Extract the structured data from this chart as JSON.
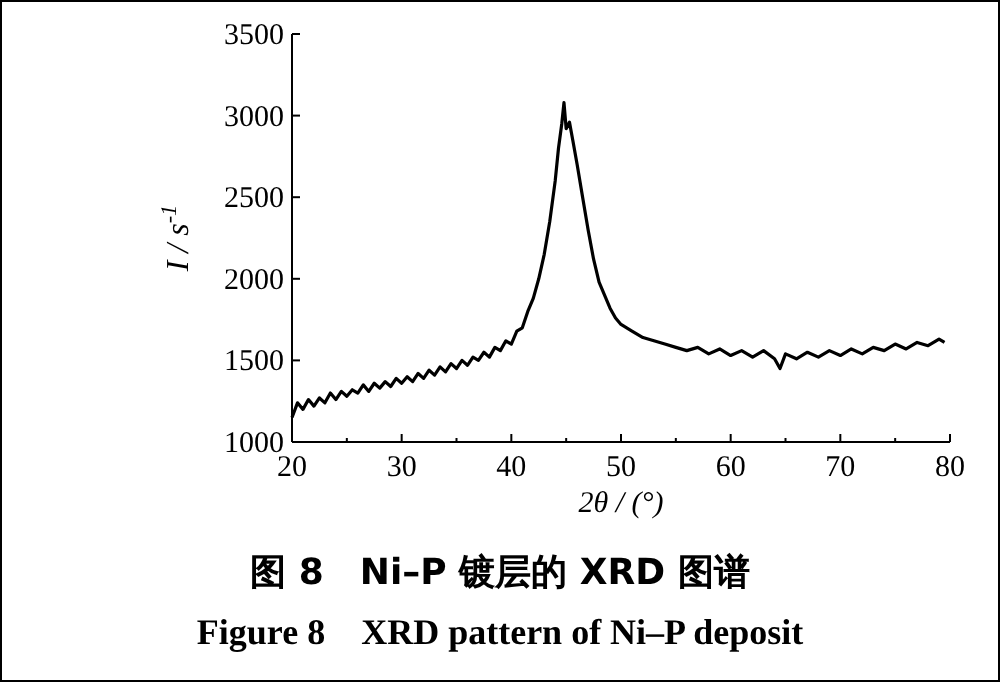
{
  "chart_data": {
    "type": "line",
    "title": "图 8　Ni–P 镀层的 XRD 图谱",
    "subtitle": "Figure 8　XRD pattern of Ni–P deposit",
    "xlabel": "2θ / (°)",
    "ylabel": "I / s$^{-1}$",
    "x": [
      20,
      20.5,
      21,
      21.5,
      22,
      22.5,
      23,
      23.5,
      24,
      24.5,
      25,
      25.5,
      26,
      26.5,
      27,
      27.5,
      28,
      28.5,
      29,
      29.5,
      30,
      30.5,
      31,
      31.5,
      32,
      32.5,
      33,
      33.5,
      34,
      34.5,
      35,
      35.5,
      36,
      36.5,
      37,
      37.5,
      38,
      38.5,
      39,
      39.5,
      40,
      40.5,
      41,
      41.5,
      42,
      42.5,
      43,
      43.5,
      44,
      44.3,
      44.6,
      44.8,
      45,
      45.3,
      45.6,
      46,
      46.5,
      47,
      47.5,
      48,
      48.5,
      49,
      49.5,
      50,
      51,
      52,
      53,
      54,
      55,
      56,
      57,
      58,
      59,
      60,
      61,
      62,
      63,
      64,
      64.5,
      65,
      66,
      67,
      68,
      69,
      70,
      71,
      72,
      73,
      74,
      75,
      76,
      77,
      78,
      79,
      79.5
    ],
    "series": [
      {
        "color": "#000000",
        "values": [
          1150,
          1240,
          1200,
          1260,
          1220,
          1270,
          1240,
          1300,
          1260,
          1310,
          1280,
          1320,
          1300,
          1350,
          1310,
          1360,
          1330,
          1370,
          1340,
          1390,
          1360,
          1400,
          1370,
          1420,
          1390,
          1440,
          1410,
          1460,
          1430,
          1480,
          1450,
          1500,
          1470,
          1520,
          1500,
          1550,
          1520,
          1580,
          1560,
          1620,
          1600,
          1680,
          1700,
          1800,
          1880,
          2000,
          2150,
          2350,
          2600,
          2800,
          2950,
          3080,
          2920,
          2960,
          2850,
          2700,
          2500,
          2300,
          2120,
          1980,
          1900,
          1820,
          1760,
          1720,
          1680,
          1640,
          1620,
          1600,
          1580,
          1560,
          1580,
          1540,
          1570,
          1530,
          1560,
          1520,
          1560,
          1510,
          1450,
          1540,
          1510,
          1550,
          1520,
          1560,
          1530,
          1570,
          1540,
          1580,
          1560,
          1600,
          1570,
          1610,
          1590,
          1630,
          1610
        ]
      }
    ],
    "xlim": [
      20,
      80
    ],
    "ylim": [
      1000,
      3500
    ],
    "xticks": [
      20,
      30,
      40,
      50,
      60,
      70,
      80
    ],
    "yticks": [
      1000,
      1500,
      2000,
      2500,
      3000,
      3500
    ],
    "grid": false,
    "marker": "none",
    "line_style": "solid"
  }
}
